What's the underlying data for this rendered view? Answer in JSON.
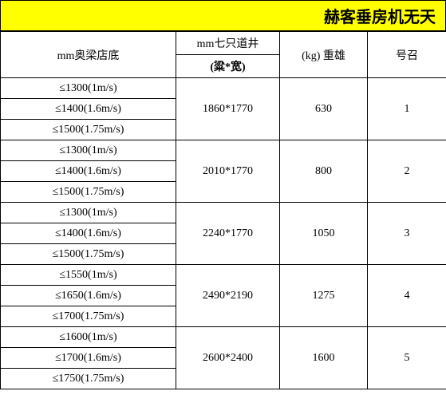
{
  "title": "赫客垂房机无天",
  "headers": {
    "pit_depth": "mm奥梁店底",
    "shaft_size": "mm七只道井",
    "shaft_sub": "(粱*宽)",
    "load": "(kg) 重雄",
    "number": "号召"
  },
  "rows": [
    {
      "number": "1",
      "load": "630",
      "shaft": "1860*1770",
      "depths": [
        "≤1300(1m/s)",
        "≤1400(1.6m/s)",
        "≤1500(1.75m/s)"
      ]
    },
    {
      "number": "2",
      "load": "800",
      "shaft": "2010*1770",
      "depths": [
        "≤1300(1m/s)",
        "≤1400(1.6m/s)",
        "≤1500(1.75m/s)"
      ]
    },
    {
      "number": "3",
      "load": "1050",
      "shaft": "2240*1770",
      "depths": [
        "≤1300(1m/s)",
        "≤1400(1.6m/s)",
        "≤1500(1.75m/s)"
      ]
    },
    {
      "number": "4",
      "load": "1275",
      "shaft": "2490*2190",
      "depths": [
        "≤1550(1m/s)",
        "≤1650(1.6m/s)",
        "≤1700(1.75m/s)"
      ]
    },
    {
      "number": "5",
      "load": "1600",
      "shaft": "2600*2400",
      "depths": [
        "≤1600(1m/s)",
        "≤1700(1.6m/s)",
        "≤1750(1.75m/s)"
      ]
    }
  ]
}
